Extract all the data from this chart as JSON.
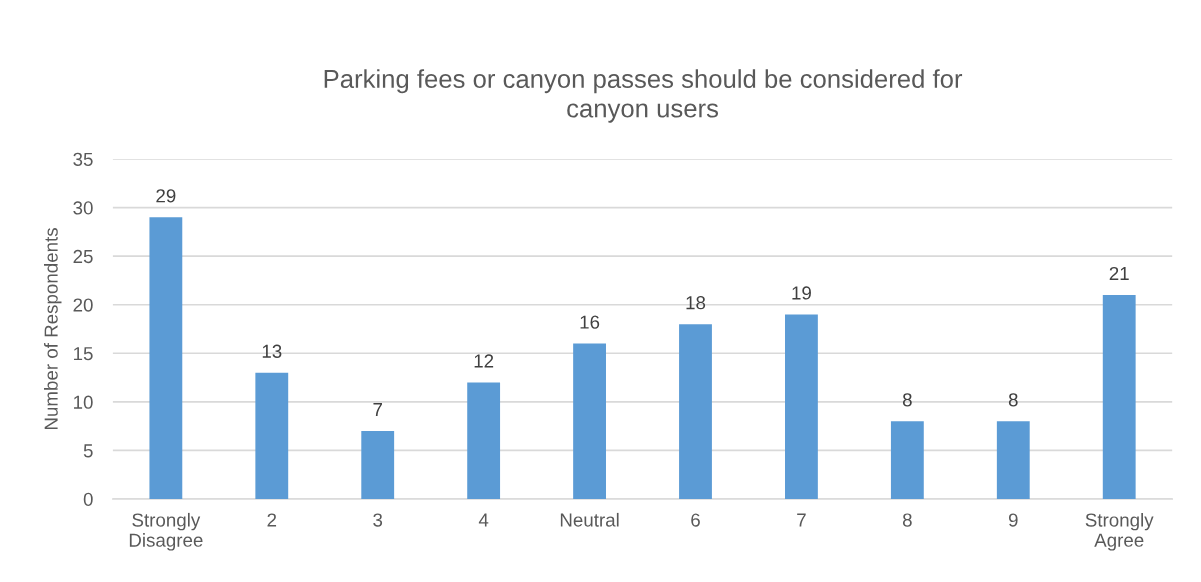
{
  "chart_data": {
    "type": "bar",
    "title": "Parking fees or canyon passes should be considered for canyon users",
    "ylabel": "Number of Respondents",
    "categories": [
      "Strongly Disagree",
      "2",
      "3",
      "4",
      "Neutral",
      "6",
      "7",
      "8",
      "9",
      "Strongly Agree"
    ],
    "values": [
      29,
      13,
      7,
      12,
      16,
      18,
      19,
      8,
      8,
      21
    ],
    "color": "#5b9bd5",
    "ylim": [
      0,
      35
    ],
    "yticks": [
      0,
      5,
      10,
      15,
      20,
      25,
      30,
      35
    ],
    "grid": "y",
    "data_labels": true,
    "legend": false
  }
}
